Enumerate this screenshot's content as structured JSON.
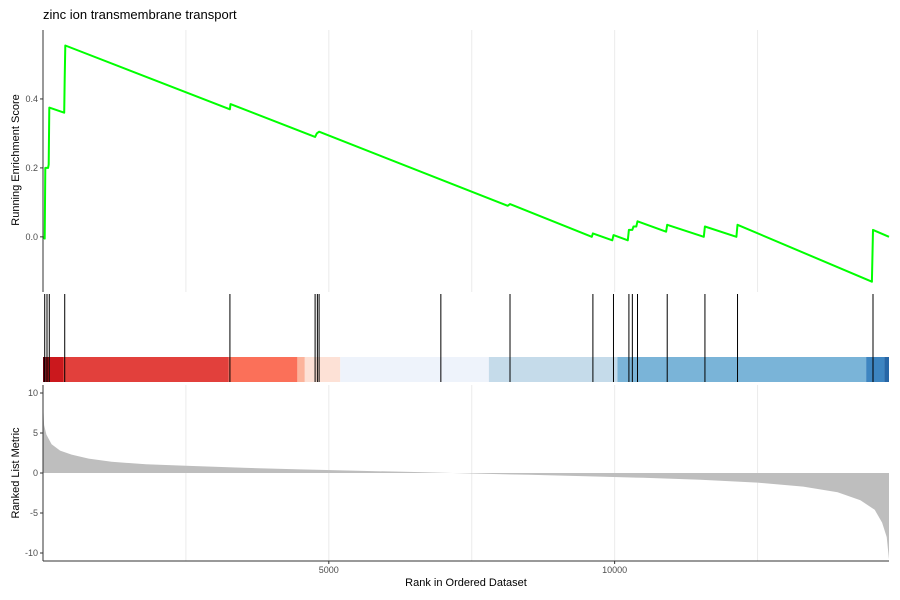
{
  "chart_data": {
    "type": "line",
    "title": "zinc ion transmembrane transport",
    "xlabel": "Rank in Ordered Dataset",
    "xlim": [
      0,
      14800
    ],
    "x_ticks": [
      {
        "value": 5000,
        "label": "5000"
      },
      {
        "value": 10000,
        "label": "10000"
      }
    ],
    "panels": {
      "enrichment": {
        "ylabel": "Running Enrichment Score",
        "ylim": [
          -0.16,
          0.6
        ],
        "y_ticks": [
          {
            "value": 0.0,
            "label": "0.0"
          },
          {
            "value": 0.2,
            "label": "0.2"
          },
          {
            "value": 0.4,
            "label": "0.4"
          }
        ],
        "line_color": "#00ff00",
        "series": [
          {
            "points": [
              [
                0,
                0.0
              ],
              [
                30,
                -0.005
              ],
              [
                40,
                0.2
              ],
              [
                90,
                0.2
              ],
              [
                100,
                0.21
              ],
              [
                110,
                0.375
              ],
              [
                370,
                0.36
              ],
              [
                380,
                0.46
              ],
              [
                390,
                0.555
              ],
              [
                3270,
                0.37
              ],
              [
                3280,
                0.385
              ],
              [
                4760,
                0.29
              ],
              [
                4790,
                0.3
              ],
              [
                4830,
                0.305
              ],
              [
                8130,
                0.09
              ],
              [
                8170,
                0.095
              ],
              [
                9600,
                0.0
              ],
              [
                9620,
                0.01
              ],
              [
                9960,
                -0.01
              ],
              [
                9980,
                0.005
              ],
              [
                10230,
                -0.01
              ],
              [
                10250,
                0.02
              ],
              [
                10310,
                0.02
              ],
              [
                10330,
                0.03
              ],
              [
                10380,
                0.03
              ],
              [
                10400,
                0.045
              ],
              [
                10900,
                0.015
              ],
              [
                10920,
                0.035
              ],
              [
                11560,
                0.0
              ],
              [
                11580,
                0.03
              ],
              [
                12130,
                0.0
              ],
              [
                12150,
                0.035
              ],
              [
                14500,
                -0.13
              ],
              [
                14520,
                0.02
              ],
              [
                14800,
                0.0
              ]
            ]
          }
        ]
      },
      "hits": {
        "positions": [
          30,
          70,
          110,
          380,
          3270,
          4760,
          4800,
          4830,
          6960,
          8170,
          9620,
          9980,
          10250,
          10310,
          10400,
          10920,
          11580,
          12150,
          14520
        ]
      },
      "rank_bands": {
        "bands": [
          {
            "from": 0,
            "to": 50,
            "color": "#67000d"
          },
          {
            "from": 50,
            "to": 120,
            "color": "#a50f15"
          },
          {
            "from": 120,
            "to": 350,
            "color": "#cb181d"
          },
          {
            "from": 350,
            "to": 3250,
            "color": "#e2403c"
          },
          {
            "from": 3250,
            "to": 4450,
            "color": "#fb7059"
          },
          {
            "from": 4450,
            "to": 4580,
            "color": "#fcb39b"
          },
          {
            "from": 4580,
            "to": 5200,
            "color": "#fde1d6"
          },
          {
            "from": 5200,
            "to": 7800,
            "color": "#eef3fb"
          },
          {
            "from": 7800,
            "to": 10050,
            "color": "#c5dbea"
          },
          {
            "from": 10050,
            "to": 14400,
            "color": "#7ab4d8"
          },
          {
            "from": 14400,
            "to": 14720,
            "color": "#3d85c1"
          },
          {
            "from": 14720,
            "to": 14800,
            "color": "#2666a6"
          }
        ]
      },
      "ranked_metric": {
        "ylabel": "Ranked List Metric",
        "ylim": [
          -11,
          11
        ],
        "y_ticks": [
          {
            "value": 10,
            "label": "10"
          },
          {
            "value": 5,
            "label": "5"
          },
          {
            "value": 0,
            "label": "0"
          },
          {
            "value": -5,
            "label": "-5"
          },
          {
            "value": -10,
            "label": "-10"
          }
        ],
        "fill_color": "#bebebe",
        "profile": [
          [
            0,
            9.0
          ],
          [
            20,
            6.0
          ],
          [
            60,
            4.8
          ],
          [
            150,
            3.6
          ],
          [
            300,
            2.8
          ],
          [
            500,
            2.3
          ],
          [
            800,
            1.8
          ],
          [
            1200,
            1.4
          ],
          [
            1800,
            1.1
          ],
          [
            2500,
            0.9
          ],
          [
            3500,
            0.65
          ],
          [
            4500,
            0.45
          ],
          [
            5500,
            0.28
          ],
          [
            6500,
            0.12
          ],
          [
            7000,
            0.03
          ],
          [
            7500,
            -0.06
          ],
          [
            8500,
            -0.22
          ],
          [
            9500,
            -0.4
          ],
          [
            10500,
            -0.6
          ],
          [
            11500,
            -0.85
          ],
          [
            12500,
            -1.2
          ],
          [
            13300,
            -1.7
          ],
          [
            13900,
            -2.4
          ],
          [
            14300,
            -3.4
          ],
          [
            14550,
            -4.6
          ],
          [
            14680,
            -6.2
          ],
          [
            14760,
            -8.0
          ],
          [
            14800,
            -10.8
          ]
        ]
      }
    }
  }
}
